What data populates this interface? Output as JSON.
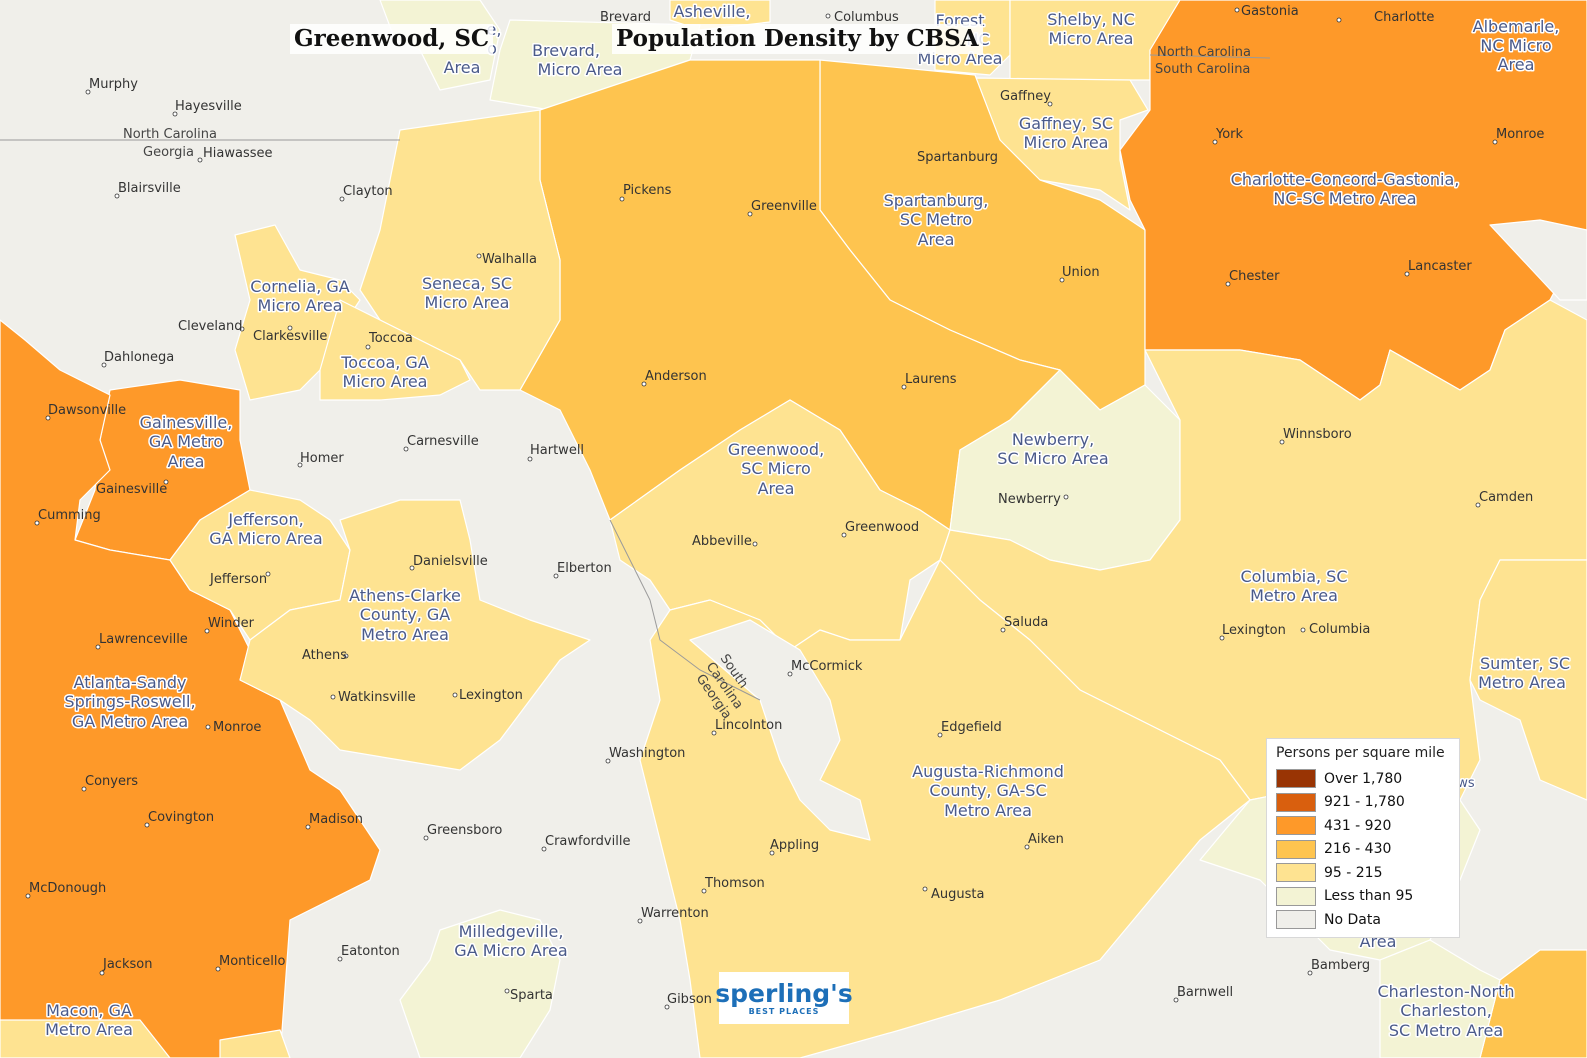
{
  "title": {
    "place": "Greenwood, SC",
    "main": "Population Density by CBSA"
  },
  "colors": {
    "over_1780": "#993404",
    "c921_1780": "#d95f0e",
    "c431_920": "#fe9929",
    "c216_430": "#fec44f",
    "c95_215": "#fee391",
    "lt95": "#f3f3d4",
    "no_data": "#f0efea",
    "border": "#ffffff"
  },
  "legend": {
    "title": "Persons per square mile",
    "items": [
      {
        "label": "Over 1,780",
        "color": "#993404"
      },
      {
        "label": "921 - 1,780",
        "color": "#d95f0e"
      },
      {
        "label": "431 - 920",
        "color": "#fe9929"
      },
      {
        "label": "216 - 430",
        "color": "#fec44f"
      },
      {
        "label": "95 - 215",
        "color": "#fee391"
      },
      {
        "label": "Less than 95",
        "color": "#f3f3d4"
      },
      {
        "label": "No Data",
        "color": "#f0efea"
      }
    ]
  },
  "region_labels": [
    {
      "name": "greenwood",
      "lines": [
        "Greenwood,",
        "SC Micro",
        "Area"
      ]
    },
    {
      "name": "spartanburg",
      "lines": [
        "Spartanburg,",
        "SC Metro",
        "Area"
      ]
    },
    {
      "name": "gaffney",
      "lines": [
        "Gaffney, SC",
        "Micro Area"
      ]
    },
    {
      "name": "shelby",
      "lines": [
        "Shelby, NC",
        "Micro Area"
      ]
    },
    {
      "name": "forest-city",
      "lines": [
        "Forest",
        "NC",
        "Micro Area"
      ]
    },
    {
      "name": "brevard",
      "lines": [
        "Brevard,",
        "Micro Area"
      ]
    },
    {
      "name": "asheville",
      "lines": [
        "Asheville,"
      ]
    },
    {
      "name": "cullowhee",
      "lines": [
        "e,",
        "o",
        "Area"
      ]
    },
    {
      "name": "charlotte",
      "lines": [
        "Charlotte-Concord-Gastonia,",
        "NC-SC Metro Area"
      ]
    },
    {
      "name": "albemarle",
      "lines": [
        "Albemarle,",
        "NC Micro",
        "Area"
      ]
    },
    {
      "name": "seneca",
      "lines": [
        "Seneca, SC",
        "Micro Area"
      ]
    },
    {
      "name": "cornelia",
      "lines": [
        "Cornelia, GA",
        "Micro Area"
      ]
    },
    {
      "name": "toccoa",
      "lines": [
        "Toccoa, GA",
        "Micro Area"
      ]
    },
    {
      "name": "gainesville",
      "lines": [
        "Gainesville,",
        "GA Metro",
        "Area"
      ]
    },
    {
      "name": "newberry",
      "lines": [
        "Newberry,",
        "SC Micro Area"
      ]
    },
    {
      "name": "jefferson",
      "lines": [
        "Jefferson,",
        "GA Micro Area"
      ]
    },
    {
      "name": "athens",
      "lines": [
        "Athens-Clarke",
        "County, GA",
        "Metro Area"
      ]
    },
    {
      "name": "columbia",
      "lines": [
        "Columbia, SC",
        "Metro Area"
      ]
    },
    {
      "name": "atlanta",
      "lines": [
        "Atlanta-Sandy",
        "Springs-Roswell,",
        "GA Metro Area"
      ]
    },
    {
      "name": "sumter",
      "lines": [
        "Sumter, SC",
        "Metro Area"
      ]
    },
    {
      "name": "augusta",
      "lines": [
        "Augusta-Richmond",
        "County, GA-SC",
        "Metro Area"
      ]
    },
    {
      "name": "milledgeville",
      "lines": [
        "Milledgeville,",
        "GA Micro Area"
      ]
    },
    {
      "name": "macon",
      "lines": [
        "Macon, GA",
        "Metro Area"
      ]
    },
    {
      "name": "charleston",
      "lines": [
        "Charleston-North",
        "Charleston,",
        "SC Metro Area"
      ]
    },
    {
      "name": "orangeburg-fragment",
      "lines": [
        "Area"
      ]
    },
    {
      "name": "sumter-fragment",
      "lines": [
        "ws"
      ]
    }
  ],
  "cities": [
    "Murphy",
    "Hayesville",
    "Hiawassee",
    "Blairsville",
    "Clayton",
    "Walhalla",
    "Cleveland",
    "Clarkesville",
    "Toccoa",
    "Dahlonega",
    "Dawsonville",
    "Gainesville",
    "Cumming",
    "Homer",
    "Carnesville",
    "Hartwell",
    "Pickens",
    "Greenville",
    "Spartanburg",
    "Gaffney",
    "Union",
    "York",
    "Monroe",
    "Chester",
    "Lancaster",
    "Anderson",
    "Laurens",
    "Newberry",
    "Winnsboro",
    "Camden",
    "Abbeville",
    "Greenwood",
    "Danielsville",
    "Elberton",
    "Jefferson",
    "Winder",
    "Lawrenceville",
    "Athens",
    "Watkinsville",
    "Lexington",
    "Saluda",
    "Columbia",
    "McCormick",
    "Lincolnton",
    "Washington",
    "Edgefield",
    "Monroe",
    "Conyers",
    "Covington",
    "Madison",
    "Greensboro",
    "Crawfordville",
    "Appling",
    "Aiken",
    "Thomson",
    "Augusta",
    "Warrenton",
    "McDonough",
    "Jackson",
    "Monticello",
    "Eatonton",
    "Sparta",
    "Gibson",
    "Barnwell",
    "Bamberg",
    "Brevard",
    "Columbus",
    "Gastonia",
    "Charlotte",
    "Lexington"
  ],
  "state_labels": {
    "nc": "North Carolina",
    "ga": "Georgia",
    "sc": "South Carolina",
    "sc_diag": "South",
    "sc_diag2": "Carolina",
    "ga_diag": "Georgia"
  },
  "logo": {
    "main": "sperling's",
    "sub": "BEST PLACES"
  }
}
